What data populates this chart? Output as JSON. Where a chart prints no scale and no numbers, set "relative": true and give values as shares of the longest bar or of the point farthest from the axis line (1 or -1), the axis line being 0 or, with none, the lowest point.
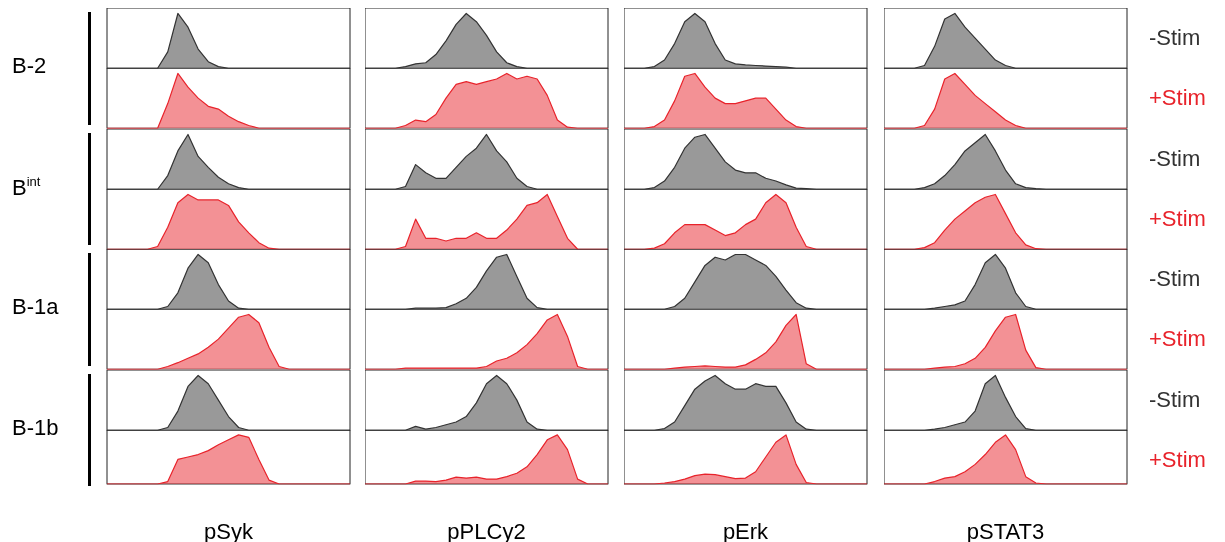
{
  "chart_data": [
    {
      "type": "area",
      "relative": true,
      "annotations": [
        "B-2"
      ],
      "categories": [
        null,
        null,
        null,
        null,
        null,
        null,
        null,
        null,
        null,
        null,
        null,
        null,
        null,
        null,
        null,
        null,
        null,
        null,
        null,
        null,
        null,
        null,
        null,
        null,
        null
      ],
      "series": [
        {
          "color": "#333333",
          "values": [
            0,
            0,
            0,
            0,
            0,
            0,
            0.3,
            1,
            0.75,
            0.35,
            0.12,
            0.03,
            0,
            0,
            0,
            0,
            0,
            0,
            0,
            0,
            0,
            0,
            0,
            0,
            0
          ]
        }
      ]
    },
    {
      "type": "area",
      "relative": true,
      "categories": [
        null,
        null,
        null,
        null,
        null,
        null,
        null,
        null,
        null,
        null,
        null,
        null,
        null,
        null,
        null,
        null,
        null,
        null,
        null,
        null,
        null,
        null,
        null,
        null,
        null
      ],
      "series": [
        {
          "color": "#333333",
          "values": [
            0,
            0,
            0,
            0,
            0.03,
            0.08,
            0.1,
            0.25,
            0.5,
            0.8,
            1,
            0.85,
            0.6,
            0.3,
            0.1,
            0.03,
            0,
            0,
            0,
            0,
            0,
            0,
            0,
            0,
            0
          ]
        }
      ]
    },
    {
      "type": "area",
      "relative": true,
      "categories": [
        null,
        null,
        null,
        null,
        null,
        null,
        null,
        null,
        null,
        null,
        null,
        null,
        null,
        null,
        null,
        null,
        null,
        null,
        null,
        null,
        null,
        null,
        null,
        null,
        null
      ],
      "series": [
        {
          "color": "#333333",
          "values": [
            0,
            0,
            0,
            0.03,
            0.15,
            0.45,
            0.85,
            1,
            0.85,
            0.45,
            0.15,
            0.08,
            0.06,
            0.05,
            0.04,
            0.03,
            0.02,
            0,
            0,
            0,
            0,
            0,
            0,
            0,
            0
          ]
        }
      ]
    },
    {
      "type": "area",
      "relative": true,
      "categories": [
        null,
        null,
        null,
        null,
        null,
        null,
        null,
        null,
        null,
        null,
        null,
        null,
        null,
        null,
        null,
        null,
        null,
        null,
        null,
        null,
        null,
        null,
        null,
        null,
        null
      ],
      "series": [
        {
          "name": "-Stim",
          "color": "#333333",
          "values": [
            0,
            0,
            0,
            0,
            0.05,
            0.4,
            0.9,
            1,
            0.75,
            0.55,
            0.35,
            0.15,
            0.05,
            0,
            0,
            0,
            0,
            0,
            0,
            0,
            0,
            0,
            0,
            0,
            0
          ]
        }
      ]
    },
    {
      "type": "area",
      "relative": true,
      "categories": [
        null,
        null,
        null,
        null,
        null,
        null,
        null,
        null,
        null,
        null,
        null,
        null,
        null,
        null,
        null,
        null,
        null,
        null,
        null,
        null,
        null,
        null,
        null,
        null,
        null
      ],
      "series": [
        {
          "color": "#e8232b",
          "values": [
            0,
            0,
            0,
            0,
            0,
            0,
            0.45,
            1,
            0.75,
            0.55,
            0.4,
            0.35,
            0.22,
            0.12,
            0.05,
            0,
            0,
            0,
            0,
            0,
            0,
            0,
            0,
            0,
            0
          ]
        }
      ]
    },
    {
      "type": "area",
      "relative": true,
      "categories": [
        null,
        null,
        null,
        null,
        null,
        null,
        null,
        null,
        null,
        null,
        null,
        null,
        null,
        null,
        null,
        null,
        null,
        null,
        null,
        null,
        null,
        null,
        null,
        null,
        null
      ],
      "series": [
        {
          "color": "#e8232b",
          "values": [
            0,
            0,
            0,
            0,
            0.05,
            0.15,
            0.12,
            0.25,
            0.55,
            0.8,
            0.85,
            0.8,
            0.85,
            0.9,
            1,
            0.9,
            0.95,
            0.9,
            0.6,
            0.15,
            0.02,
            0,
            0,
            0,
            0
          ]
        }
      ]
    },
    {
      "type": "area",
      "relative": true,
      "categories": [
        null,
        null,
        null,
        null,
        null,
        null,
        null,
        null,
        null,
        null,
        null,
        null,
        null,
        null,
        null,
        null,
        null,
        null,
        null,
        null,
        null,
        null,
        null,
        null,
        null
      ],
      "series": [
        {
          "color": "#e8232b",
          "values": [
            0,
            0,
            0,
            0.03,
            0.15,
            0.5,
            0.95,
            1,
            0.75,
            0.55,
            0.45,
            0.45,
            0.5,
            0.55,
            0.55,
            0.35,
            0.15,
            0.03,
            0,
            0,
            0,
            0,
            0,
            0,
            0
          ]
        }
      ]
    },
    {
      "type": "area",
      "relative": true,
      "categories": [
        null,
        null,
        null,
        null,
        null,
        null,
        null,
        null,
        null,
        null,
        null,
        null,
        null,
        null,
        null,
        null,
        null,
        null,
        null,
        null,
        null,
        null,
        null,
        null,
        null
      ],
      "series": [
        {
          "name": "+Stim",
          "color": "#e8232b",
          "values": [
            0,
            0,
            0,
            0,
            0.05,
            0.35,
            0.9,
            1,
            0.8,
            0.6,
            0.45,
            0.3,
            0.15,
            0.05,
            0,
            0,
            0,
            0,
            0,
            0,
            0,
            0,
            0,
            0,
            0
          ]
        }
      ]
    },
    {
      "type": "area",
      "relative": true,
      "annotations": [
        "B$^{int}$"
      ],
      "categories": [
        null,
        null,
        null,
        null,
        null,
        null,
        null,
        null,
        null,
        null,
        null,
        null,
        null,
        null,
        null,
        null,
        null,
        null,
        null,
        null,
        null,
        null,
        null,
        null,
        null
      ],
      "series": [
        {
          "color": "#333333",
          "values": [
            0,
            0,
            0,
            0,
            0,
            0,
            0.25,
            0.7,
            1,
            0.6,
            0.4,
            0.22,
            0.1,
            0.03,
            0,
            0,
            0,
            0,
            0,
            0,
            0,
            0,
            0,
            0,
            0
          ]
        }
      ]
    },
    {
      "type": "area",
      "relative": true,
      "categories": [
        null,
        null,
        null,
        null,
        null,
        null,
        null,
        null,
        null,
        null,
        null,
        null,
        null,
        null,
        null,
        null,
        null,
        null,
        null,
        null,
        null,
        null,
        null,
        null,
        null
      ],
      "series": [
        {
          "color": "#333333",
          "values": [
            0,
            0,
            0,
            0,
            0.05,
            0.45,
            0.3,
            0.2,
            0.2,
            0.4,
            0.6,
            0.75,
            1,
            0.7,
            0.5,
            0.2,
            0.05,
            0,
            0,
            0,
            0,
            0,
            0,
            0,
            0
          ]
        }
      ]
    },
    {
      "type": "area",
      "relative": true,
      "categories": [
        null,
        null,
        null,
        null,
        null,
        null,
        null,
        null,
        null,
        null,
        null,
        null,
        null,
        null,
        null,
        null,
        null,
        null,
        null,
        null,
        null,
        null,
        null,
        null,
        null
      ],
      "series": [
        {
          "color": "#333333",
          "values": [
            0,
            0,
            0,
            0.03,
            0.15,
            0.4,
            0.75,
            0.95,
            1,
            0.75,
            0.5,
            0.35,
            0.3,
            0.3,
            0.2,
            0.15,
            0.08,
            0.02,
            0.01,
            0,
            0,
            0,
            0,
            0,
            0
          ]
        }
      ]
    },
    {
      "type": "area",
      "relative": true,
      "categories": [
        null,
        null,
        null,
        null,
        null,
        null,
        null,
        null,
        null,
        null,
        null,
        null,
        null,
        null,
        null,
        null,
        null,
        null,
        null,
        null,
        null,
        null,
        null,
        null,
        null
      ],
      "series": [
        {
          "name": "-Stim",
          "color": "#333333",
          "values": [
            0,
            0,
            0,
            0,
            0.03,
            0.1,
            0.25,
            0.45,
            0.7,
            0.85,
            1,
            0.7,
            0.35,
            0.1,
            0.03,
            0.01,
            0,
            0,
            0,
            0,
            0,
            0,
            0,
            0,
            0
          ]
        }
      ]
    },
    {
      "type": "area",
      "relative": true,
      "categories": [
        null,
        null,
        null,
        null,
        null,
        null,
        null,
        null,
        null,
        null,
        null,
        null,
        null,
        null,
        null,
        null,
        null,
        null,
        null,
        null,
        null,
        null,
        null,
        null,
        null
      ],
      "series": [
        {
          "color": "#e8232b",
          "values": [
            0,
            0,
            0,
            0,
            0,
            0.05,
            0.4,
            0.85,
            1,
            0.9,
            0.9,
            0.9,
            0.8,
            0.5,
            0.3,
            0.12,
            0.02,
            0,
            0,
            0,
            0,
            0,
            0,
            0,
            0
          ]
        }
      ]
    },
    {
      "type": "area",
      "relative": true,
      "categories": [
        null,
        null,
        null,
        null,
        null,
        null,
        null,
        null,
        null,
        null,
        null,
        null,
        null,
        null,
        null,
        null,
        null,
        null,
        null,
        null,
        null,
        null,
        null,
        null,
        null
      ],
      "series": [
        {
          "color": "#e8232b",
          "values": [
            0,
            0,
            0,
            0,
            0.05,
            0.55,
            0.2,
            0.2,
            0.15,
            0.2,
            0.2,
            0.3,
            0.2,
            0.2,
            0.35,
            0.55,
            0.8,
            0.85,
            1,
            0.6,
            0.2,
            0,
            0,
            0,
            0
          ]
        }
      ]
    },
    {
      "type": "area",
      "relative": true,
      "categories": [
        null,
        null,
        null,
        null,
        null,
        null,
        null,
        null,
        null,
        null,
        null,
        null,
        null,
        null,
        null,
        null,
        null,
        null,
        null,
        null,
        null,
        null,
        null,
        null,
        null
      ],
      "series": [
        {
          "color": "#e8232b",
          "values": [
            0,
            0,
            0,
            0.02,
            0.1,
            0.3,
            0.45,
            0.45,
            0.45,
            0.35,
            0.25,
            0.3,
            0.45,
            0.55,
            0.85,
            1,
            0.85,
            0.4,
            0.05,
            0,
            0,
            0,
            0,
            0,
            0
          ]
        }
      ]
    },
    {
      "type": "area",
      "relative": true,
      "categories": [
        null,
        null,
        null,
        null,
        null,
        null,
        null,
        null,
        null,
        null,
        null,
        null,
        null,
        null,
        null,
        null,
        null,
        null,
        null,
        null,
        null,
        null,
        null,
        null,
        null
      ],
      "series": [
        {
          "name": "+Stim",
          "color": "#e8232b",
          "values": [
            0,
            0,
            0,
            0,
            0.03,
            0.12,
            0.35,
            0.55,
            0.7,
            0.85,
            0.95,
            1,
            0.65,
            0.3,
            0.08,
            0.01,
            0,
            0,
            0,
            0,
            0,
            0,
            0,
            0,
            0
          ]
        }
      ]
    },
    {
      "type": "area",
      "relative": true,
      "annotations": [
        "B-1a"
      ],
      "categories": [
        null,
        null,
        null,
        null,
        null,
        null,
        null,
        null,
        null,
        null,
        null,
        null,
        null,
        null,
        null,
        null,
        null,
        null,
        null,
        null,
        null,
        null,
        null,
        null,
        null
      ],
      "series": [
        {
          "color": "#333333",
          "values": [
            0,
            0,
            0,
            0,
            0,
            0,
            0.05,
            0.3,
            0.75,
            1,
            0.85,
            0.45,
            0.15,
            0.02,
            0,
            0,
            0,
            0,
            0,
            0,
            0,
            0,
            0,
            0,
            0
          ]
        }
      ]
    },
    {
      "type": "area",
      "relative": true,
      "categories": [
        null,
        null,
        null,
        null,
        null,
        null,
        null,
        null,
        null,
        null,
        null,
        null,
        null,
        null,
        null,
        null,
        null,
        null,
        null,
        null,
        null,
        null,
        null,
        null,
        null
      ],
      "series": [
        {
          "color": "#333333",
          "values": [
            0,
            0,
            0,
            0,
            0,
            0.02,
            0.02,
            0.02,
            0.03,
            0.1,
            0.2,
            0.4,
            0.7,
            0.95,
            1,
            0.6,
            0.2,
            0.03,
            0,
            0,
            0,
            0,
            0,
            0,
            0
          ]
        }
      ]
    },
    {
      "type": "area",
      "relative": true,
      "categories": [
        null,
        null,
        null,
        null,
        null,
        null,
        null,
        null,
        null,
        null,
        null,
        null,
        null,
        null,
        null,
        null,
        null,
        null,
        null,
        null,
        null,
        null,
        null,
        null,
        null
      ],
      "series": [
        {
          "color": "#333333",
          "values": [
            0,
            0,
            0,
            0,
            0,
            0.05,
            0.2,
            0.5,
            0.8,
            0.95,
            0.9,
            1,
            1,
            0.9,
            0.8,
            0.6,
            0.35,
            0.12,
            0.02,
            0,
            0,
            0,
            0,
            0,
            0
          ]
        }
      ]
    },
    {
      "type": "area",
      "relative": true,
      "categories": [
        null,
        null,
        null,
        null,
        null,
        null,
        null,
        null,
        null,
        null,
        null,
        null,
        null,
        null,
        null,
        null,
        null,
        null,
        null,
        null,
        null,
        null,
        null,
        null,
        null
      ],
      "series": [
        {
          "name": "-Stim",
          "color": "#333333",
          "values": [
            0,
            0,
            0,
            0,
            0,
            0.02,
            0.05,
            0.08,
            0.15,
            0.45,
            0.85,
            1,
            0.75,
            0.3,
            0.05,
            0,
            0,
            0,
            0,
            0,
            0,
            0,
            0,
            0,
            0
          ]
        }
      ]
    },
    {
      "type": "area",
      "relative": true,
      "categories": [
        null,
        null,
        null,
        null,
        null,
        null,
        null,
        null,
        null,
        null,
        null,
        null,
        null,
        null,
        null,
        null,
        null,
        null,
        null,
        null,
        null,
        null,
        null,
        null,
        null
      ],
      "series": [
        {
          "color": "#e8232b",
          "values": [
            0,
            0,
            0,
            0,
            0,
            0,
            0.05,
            0.12,
            0.2,
            0.28,
            0.4,
            0.55,
            0.75,
            0.95,
            1,
            0.85,
            0.4,
            0.05,
            0,
            0,
            0,
            0,
            0,
            0,
            0
          ]
        }
      ]
    },
    {
      "type": "area",
      "relative": true,
      "categories": [
        null,
        null,
        null,
        null,
        null,
        null,
        null,
        null,
        null,
        null,
        null,
        null,
        null,
        null,
        null,
        null,
        null,
        null,
        null,
        null,
        null,
        null,
        null,
        null,
        null
      ],
      "series": [
        {
          "color": "#e8232b",
          "values": [
            0,
            0,
            0,
            0,
            0.02,
            0.02,
            0.02,
            0.02,
            0.02,
            0.02,
            0.02,
            0.02,
            0.05,
            0.15,
            0.2,
            0.3,
            0.45,
            0.65,
            0.9,
            1,
            0.6,
            0.05,
            0,
            0,
            0
          ]
        }
      ]
    },
    {
      "type": "area",
      "relative": true,
      "categories": [
        null,
        null,
        null,
        null,
        null,
        null,
        null,
        null,
        null,
        null,
        null,
        null,
        null,
        null,
        null,
        null,
        null,
        null,
        null,
        null,
        null,
        null,
        null,
        null,
        null
      ],
      "series": [
        {
          "color": "#e8232b",
          "values": [
            0,
            0,
            0,
            0,
            0,
            0.02,
            0.04,
            0.05,
            0.06,
            0.05,
            0.04,
            0.04,
            0.08,
            0.18,
            0.3,
            0.5,
            0.8,
            1,
            0.1,
            0,
            0,
            0,
            0,
            0,
            0
          ]
        }
      ]
    },
    {
      "type": "area",
      "relative": true,
      "categories": [
        null,
        null,
        null,
        null,
        null,
        null,
        null,
        null,
        null,
        null,
        null,
        null,
        null,
        null,
        null,
        null,
        null,
        null,
        null,
        null,
        null,
        null,
        null,
        null,
        null
      ],
      "series": [
        {
          "name": "+Stim",
          "color": "#e8232b",
          "values": [
            0,
            0,
            0,
            0,
            0,
            0.02,
            0.04,
            0.05,
            0.1,
            0.2,
            0.4,
            0.7,
            0.95,
            1,
            0.35,
            0.03,
            0,
            0,
            0,
            0,
            0,
            0,
            0,
            0,
            0
          ]
        }
      ]
    },
    {
      "type": "area",
      "relative": true,
      "annotations": [
        "B-1b"
      ],
      "categories": [
        null,
        null,
        null,
        null,
        null,
        null,
        null,
        null,
        null,
        null,
        null,
        null,
        null,
        null,
        null,
        null,
        null,
        null,
        null,
        null,
        null,
        null,
        null,
        null,
        null
      ],
      "series": [
        {
          "color": "#333333",
          "values": [
            0,
            0,
            0,
            0,
            0,
            0,
            0.05,
            0.35,
            0.8,
            1,
            0.85,
            0.55,
            0.25,
            0.05,
            0,
            0,
            0,
            0,
            0,
            0,
            0,
            0,
            0,
            0,
            0
          ]
        }
      ]
    },
    {
      "type": "area",
      "relative": true,
      "categories": [
        null,
        null,
        null,
        null,
        null,
        null,
        null,
        null,
        null,
        null,
        null,
        null,
        null,
        null,
        null,
        null,
        null,
        null,
        null,
        null,
        null,
        null,
        null,
        null,
        null
      ],
      "series": [
        {
          "color": "#333333",
          "values": [
            0,
            0,
            0,
            0,
            0,
            0.07,
            0.02,
            0.05,
            0.1,
            0.15,
            0.25,
            0.5,
            0.85,
            1,
            0.85,
            0.55,
            0.15,
            0.02,
            0,
            0,
            0,
            0,
            0,
            0,
            0
          ]
        }
      ]
    },
    {
      "type": "area",
      "relative": true,
      "categories": [
        null,
        null,
        null,
        null,
        null,
        null,
        null,
        null,
        null,
        null,
        null,
        null,
        null,
        null,
        null,
        null,
        null,
        null,
        null,
        null,
        null,
        null,
        null,
        null,
        null
      ],
      "series": [
        {
          "color": "#333333",
          "values": [
            0,
            0,
            0,
            0,
            0.03,
            0.15,
            0.45,
            0.75,
            0.9,
            1,
            0.85,
            0.75,
            0.75,
            0.85,
            0.8,
            0.8,
            0.5,
            0.15,
            0.02,
            0,
            0,
            0,
            0,
            0,
            0
          ]
        }
      ]
    },
    {
      "type": "area",
      "relative": true,
      "categories": [
        null,
        null,
        null,
        null,
        null,
        null,
        null,
        null,
        null,
        null,
        null,
        null,
        null,
        null,
        null,
        null,
        null,
        null,
        null,
        null,
        null,
        null,
        null,
        null,
        null
      ],
      "series": [
        {
          "name": "-Stim",
          "color": "#333333",
          "values": [
            0,
            0,
            0,
            0,
            0,
            0.02,
            0.05,
            0.1,
            0.15,
            0.35,
            0.85,
            1,
            0.6,
            0.25,
            0.03,
            0,
            0,
            0,
            0,
            0,
            0,
            0,
            0,
            0,
            0
          ]
        }
      ]
    },
    {
      "type": "area",
      "relative": true,
      "xlabel": "pSyk",
      "categories": [
        null,
        null,
        null,
        null,
        null,
        null,
        null,
        null,
        null,
        null,
        null,
        null,
        null,
        null,
        null,
        null,
        null,
        null,
        null,
        null,
        null,
        null,
        null,
        null,
        null
      ],
      "series": [
        {
          "color": "#e8232b",
          "values": [
            0,
            0,
            0,
            0,
            0,
            0,
            0.05,
            0.5,
            0.55,
            0.6,
            0.68,
            0.8,
            0.9,
            1,
            0.95,
            0.5,
            0.08,
            0,
            0,
            0,
            0,
            0,
            0,
            0,
            0
          ]
        }
      ]
    },
    {
      "type": "area",
      "relative": true,
      "xlabel": "pPLCy2",
      "categories": [
        null,
        null,
        null,
        null,
        null,
        null,
        null,
        null,
        null,
        null,
        null,
        null,
        null,
        null,
        null,
        null,
        null,
        null,
        null,
        null,
        null,
        null,
        null,
        null,
        null
      ],
      "series": [
        {
          "color": "#e8232b",
          "values": [
            0,
            0,
            0,
            0,
            0,
            0.06,
            0.06,
            0.05,
            0.08,
            0.14,
            0.12,
            0.14,
            0.1,
            0.1,
            0.15,
            0.22,
            0.35,
            0.6,
            0.9,
            1,
            0.7,
            0.1,
            0,
            0,
            0
          ]
        }
      ]
    },
    {
      "type": "area",
      "relative": true,
      "xlabel": "pErk",
      "categories": [
        null,
        null,
        null,
        null,
        null,
        null,
        null,
        null,
        null,
        null,
        null,
        null,
        null,
        null,
        null,
        null,
        null,
        null,
        null,
        null,
        null,
        null,
        null,
        null,
        null
      ],
      "series": [
        {
          "color": "#e8232b",
          "values": [
            0,
            0,
            0,
            0,
            0.02,
            0.05,
            0.1,
            0.17,
            0.2,
            0.19,
            0.15,
            0.11,
            0.12,
            0.25,
            0.55,
            0.85,
            1,
            0.4,
            0.03,
            0,
            0,
            0,
            0,
            0,
            0
          ]
        }
      ]
    },
    {
      "type": "area",
      "relative": true,
      "xlabel": "pSTAT3",
      "categories": [
        null,
        null,
        null,
        null,
        null,
        null,
        null,
        null,
        null,
        null,
        null,
        null,
        null,
        null,
        null,
        null,
        null,
        null,
        null,
        null,
        null,
        null,
        null,
        null,
        null
      ],
      "series": [
        {
          "name": "+Stim",
          "color": "#e8232b",
          "values": [
            0,
            0,
            0,
            0,
            0,
            0.05,
            0.12,
            0.15,
            0.25,
            0.4,
            0.6,
            0.85,
            1,
            0.7,
            0.15,
            0.02,
            0,
            0,
            0,
            0,
            0,
            0,
            0,
            0,
            0
          ]
        }
      ]
    }
  ]
}
